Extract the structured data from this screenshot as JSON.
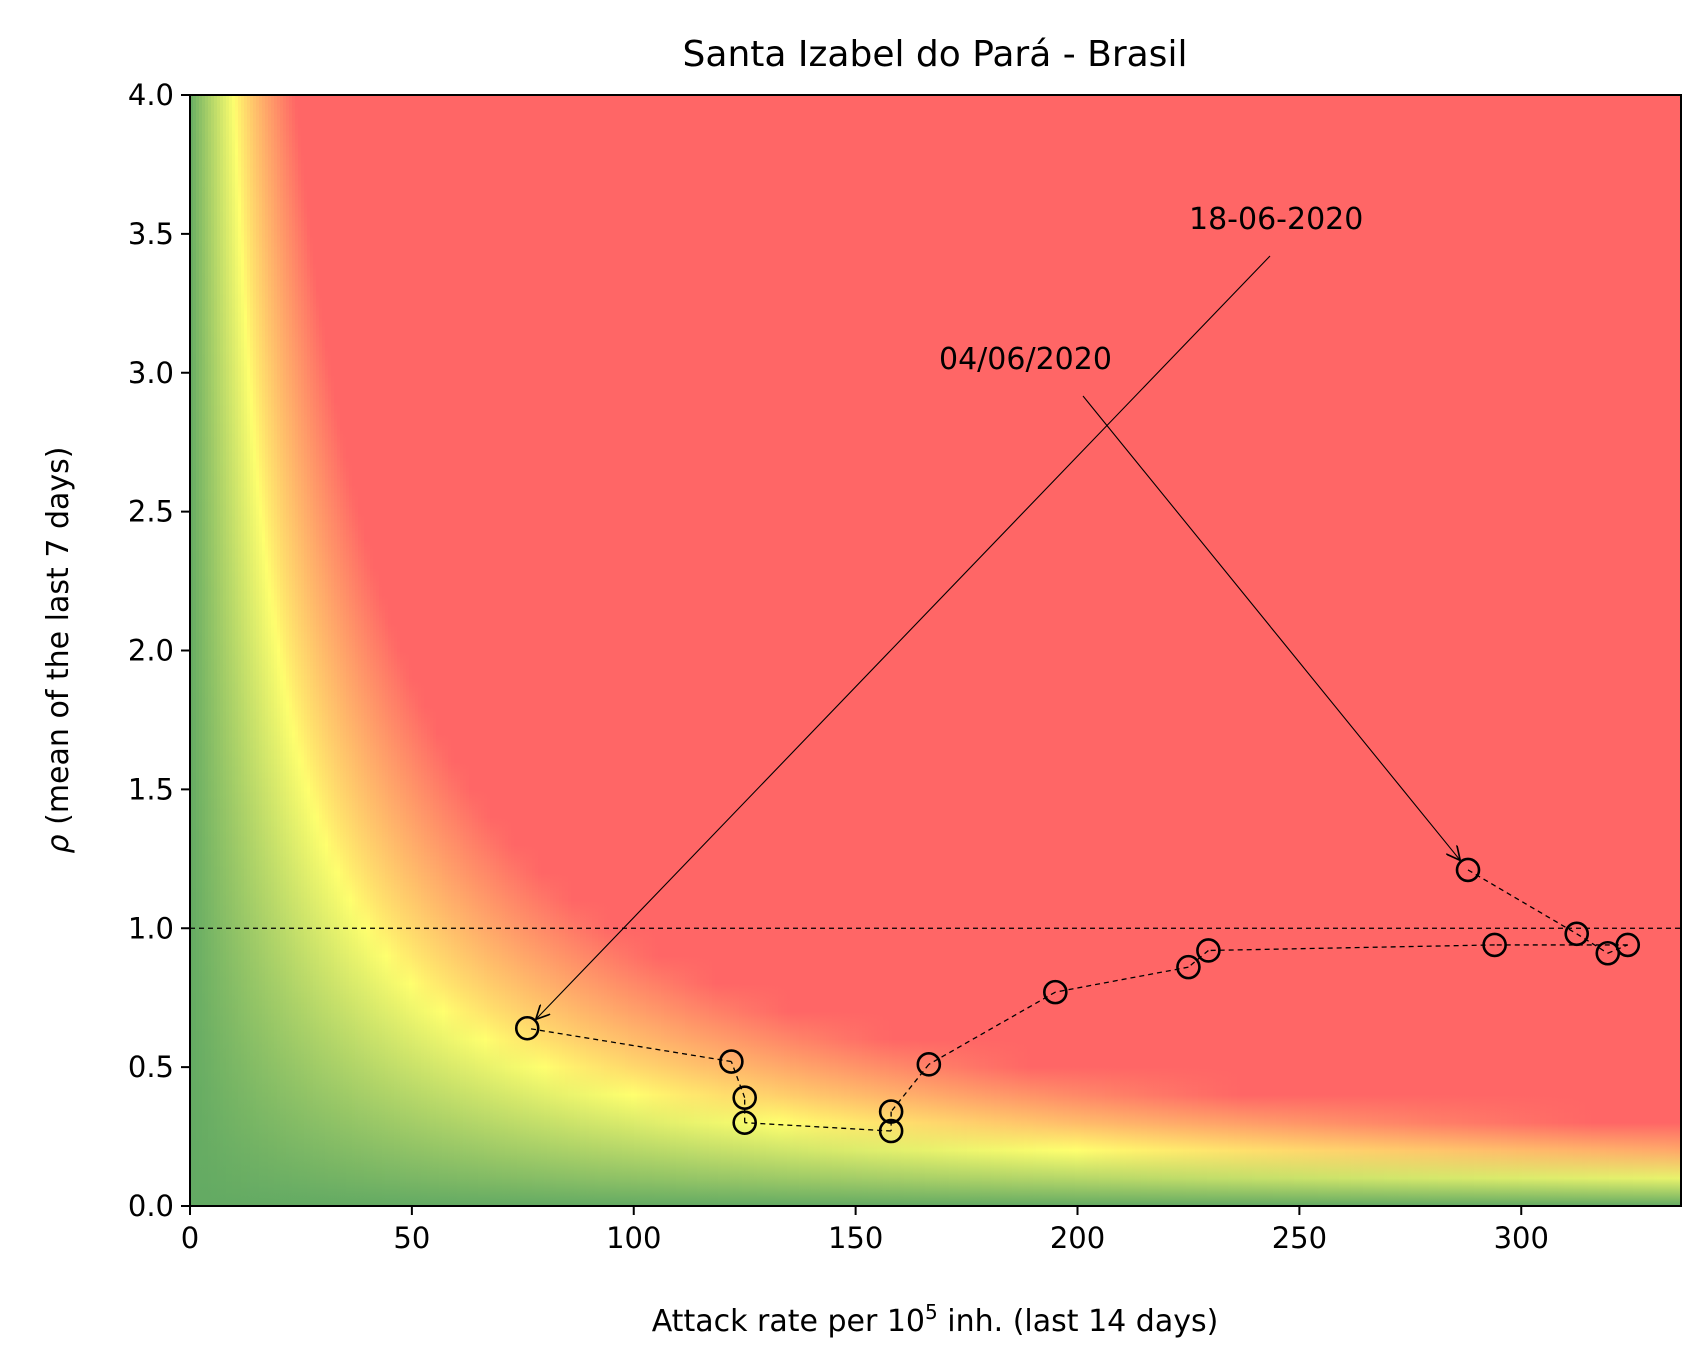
{
  "chart_data": {
    "type": "scatter",
    "title": "Santa Izabel do Pará - Brasil",
    "xlabel": {
      "prefix": "Attack rate per 10",
      "superscript": "5",
      "suffix": " inh. (last 14 days)"
    },
    "ylabel": {
      "symbol": "ρ",
      "text": " (mean of the last 7 days)"
    },
    "xlim": [
      0,
      336
    ],
    "ylim": [
      0,
      4.0
    ],
    "xticks": [
      0,
      50,
      100,
      150,
      200,
      250,
      300
    ],
    "xtick_labels": [
      "0",
      "50",
      "100",
      "150",
      "200",
      "250",
      "300"
    ],
    "yticks": [
      0.0,
      0.5,
      1.0,
      1.5,
      2.0,
      2.5,
      3.0,
      3.5,
      4.0
    ],
    "ytick_labels": [
      "0.0",
      "0.5",
      "1.0",
      "1.5",
      "2.0",
      "2.5",
      "3.0",
      "3.5",
      "4.0"
    ],
    "reference_line": {
      "y": 1.0,
      "style": "dashed"
    },
    "background": {
      "type": "risk-heatmap",
      "description_colors": {
        "low": "#63aa63",
        "mid": "#ffff6e",
        "high": "#ff6666"
      }
    },
    "series": [
      {
        "style": "open-circle-dashed-line",
        "x": [
          288,
          312.5,
          319.5,
          324,
          294,
          229.5,
          225,
          195,
          166.5,
          158,
          158,
          125,
          125,
          122,
          76
        ],
        "y": [
          1.21,
          0.98,
          0.91,
          0.94,
          0.94,
          0.92,
          0.86,
          0.77,
          0.51,
          0.34,
          0.27,
          0.3,
          0.39,
          0.52,
          0.64
        ]
      }
    ],
    "annotations": [
      {
        "text": "18-06-2020",
        "point": [
          76,
          0.64
        ]
      },
      {
        "text": "04/06/2020",
        "point": [
          288,
          1.21
        ]
      }
    ]
  }
}
